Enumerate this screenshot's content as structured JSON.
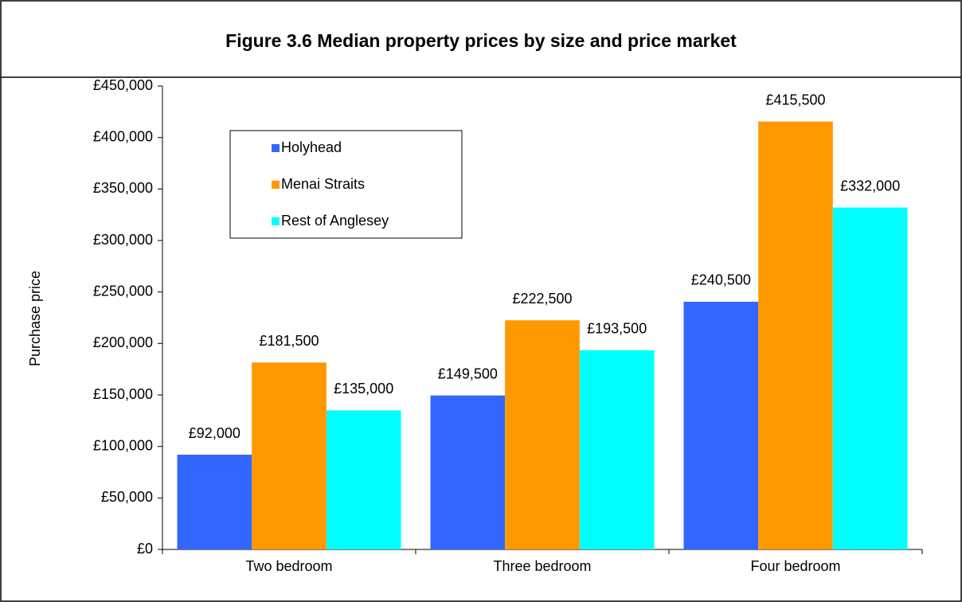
{
  "chart_data": {
    "type": "bar",
    "title": "Figure 3.6 Median property prices by size and price market",
    "y_label": "Purchase price",
    "categories": [
      "Two bedroom",
      "Three bedroom",
      "Four bedroom"
    ],
    "series": [
      {
        "name": "Holyhead",
        "color": "#3366FF",
        "values": [
          92000,
          149500,
          240500
        ],
        "value_labels": [
          "£92,000",
          "£149,500",
          "£240,500"
        ]
      },
      {
        "name": "Menai Straits",
        "color": "#FF9900",
        "values": [
          181500,
          222500,
          415500
        ],
        "value_labels": [
          "£181,500",
          "£222,500",
          "£415,500"
        ]
      },
      {
        "name": "Rest of Anglesey",
        "color": "#00FFFF",
        "values": [
          135000,
          193500,
          332000
        ],
        "value_labels": [
          "£135,000",
          "£193,500",
          "£332,000"
        ]
      }
    ],
    "ylim": [
      0,
      450000
    ],
    "yticks": [
      {
        "value": 0,
        "label": "£0"
      },
      {
        "value": 50000,
        "label": "£50,000"
      },
      {
        "value": 100000,
        "label": "£100,000"
      },
      {
        "value": 150000,
        "label": "£150,000"
      },
      {
        "value": 200000,
        "label": "£200,000"
      },
      {
        "value": 250000,
        "label": "£250,000"
      },
      {
        "value": 300000,
        "label": "£300,000"
      },
      {
        "value": 350000,
        "label": "£350,000"
      },
      {
        "value": 400000,
        "label": "£400,000"
      },
      {
        "value": 450000,
        "label": "£450,000"
      }
    ],
    "grid": false,
    "legend": "upper left"
  }
}
